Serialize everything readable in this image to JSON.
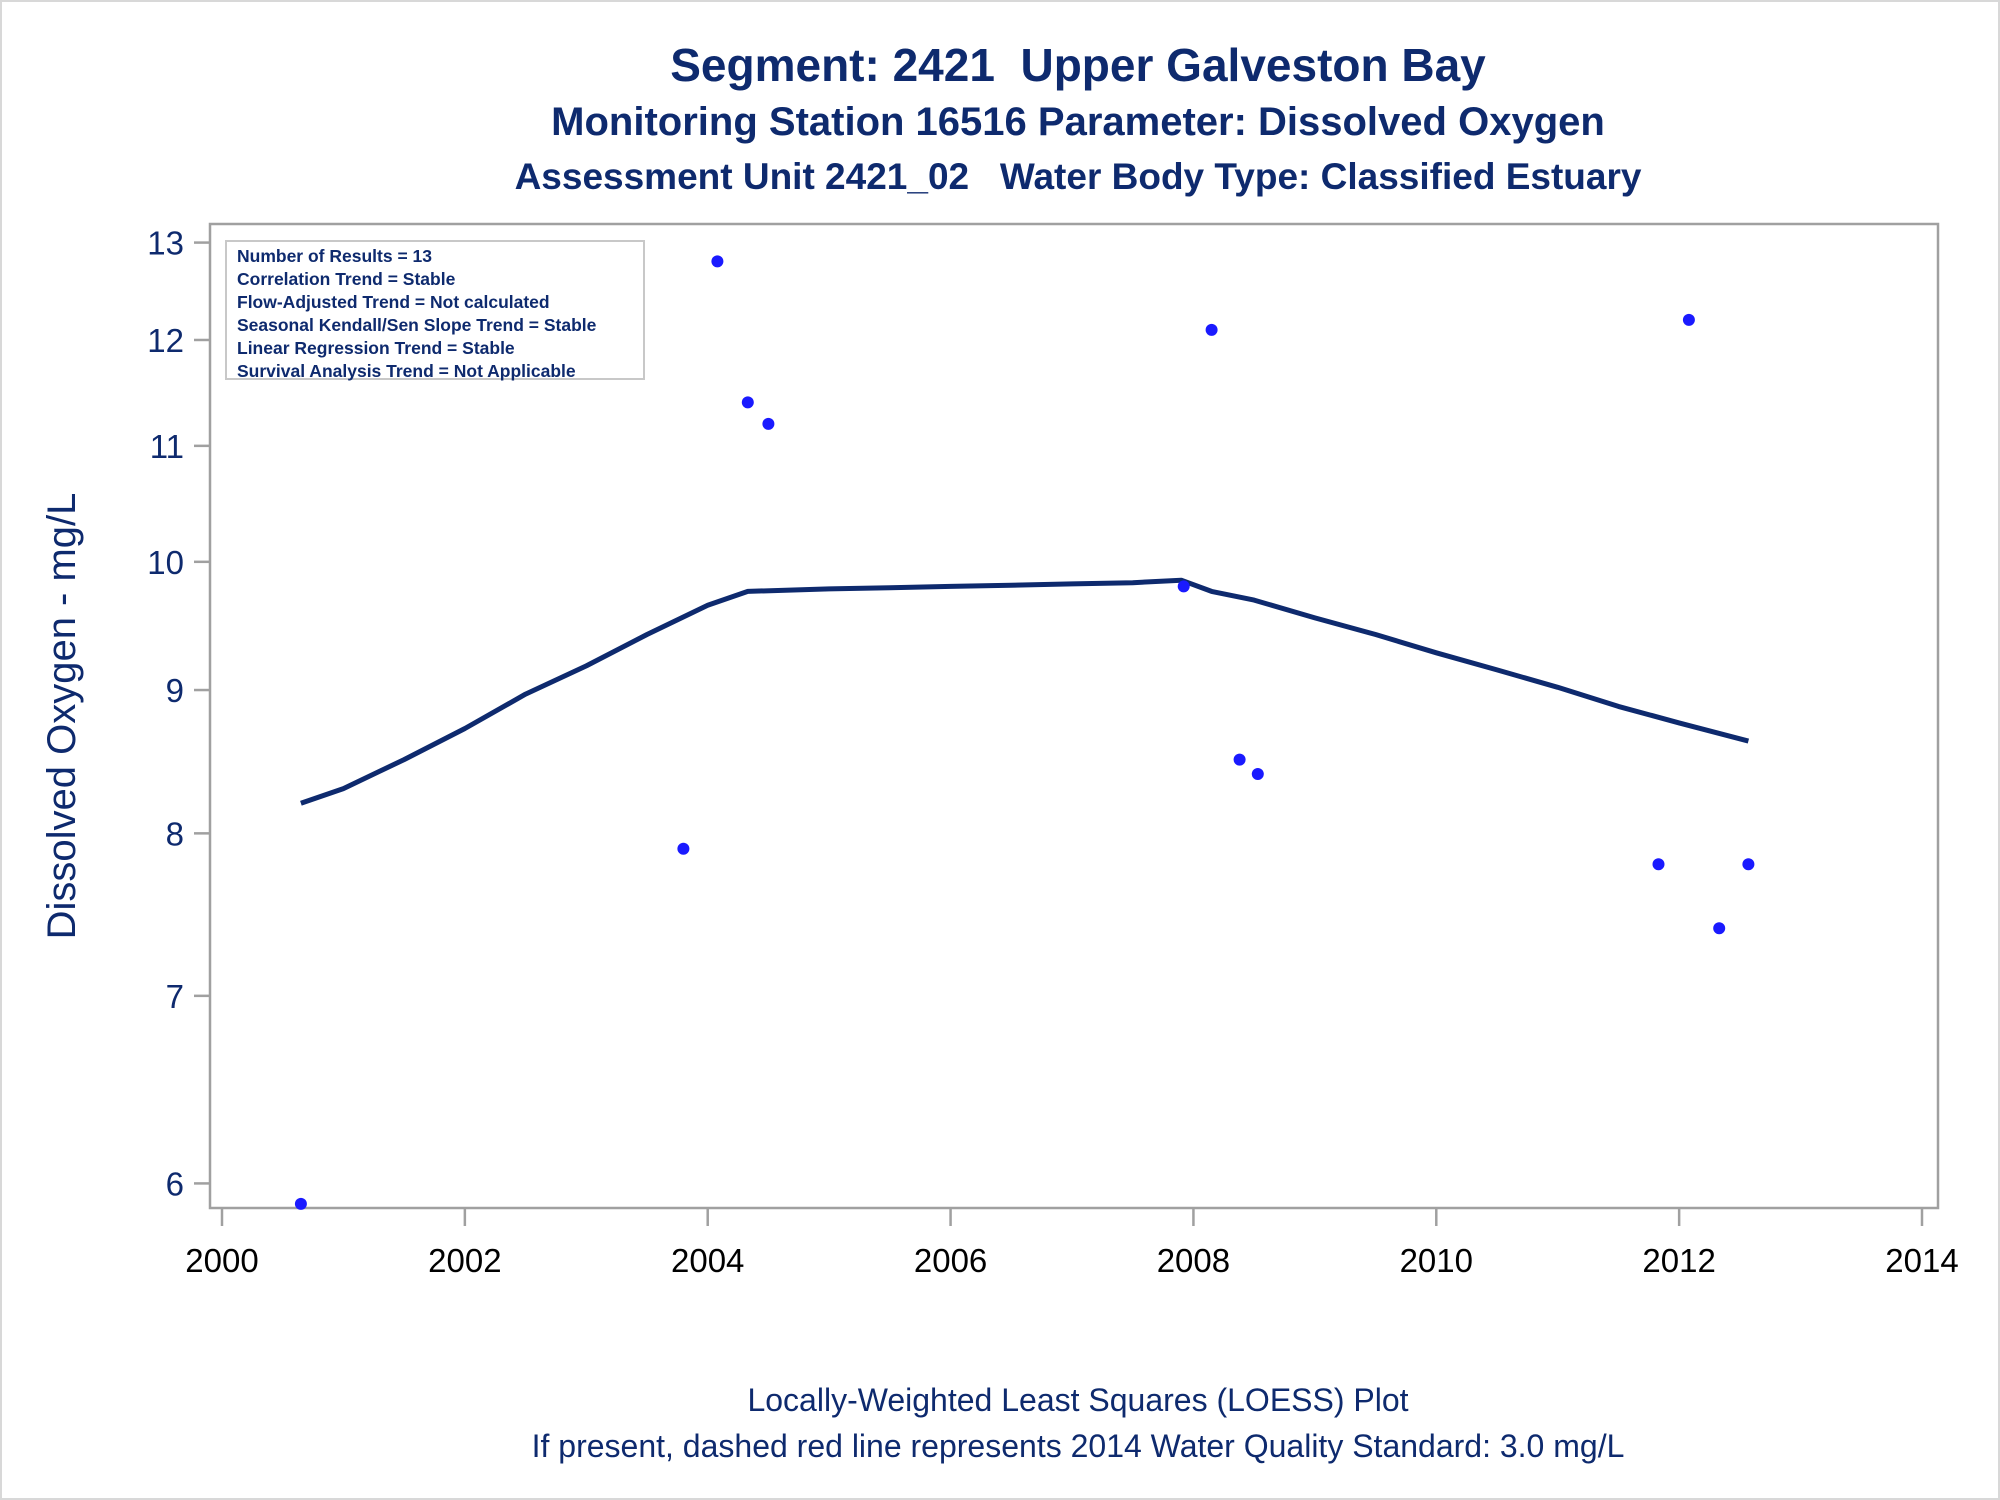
{
  "titles": {
    "line1": "Segment: 2421  Upper Galveston Bay",
    "line2": "Monitoring Station 16516 Parameter: Dissolved Oxygen",
    "line3": "Assessment Unit 2421_02   Water Body Type: Classified Estuary"
  },
  "footnotes": {
    "line1": "Locally-Weighted Least Squares (LOESS) Plot",
    "line2": "If present, dashed red line represents 2014 Water Quality Standard: 3.0 mg/L"
  },
  "stats": [
    "Number of Results = 13",
    "Correlation Trend = Stable",
    "Flow-Adjusted Trend = Not calculated",
    "Seasonal Kendall/Sen Slope Trend = Stable",
    "Linear Regression Trend = Stable",
    "Survival Analysis Trend = Not Applicable"
  ],
  "colors": {
    "text": "#0e2a6e",
    "points": "#1a1aff",
    "loess": "#0e2a6e",
    "axis": "#a0a0a0"
  },
  "chart_data": {
    "type": "scatter",
    "xlabel": "",
    "ylabel": "Dissolved Oxygen - mg/L",
    "x_scale": "linear",
    "y_scale": "log",
    "xlim": [
      2000,
      2014
    ],
    "ylim": [
      5.88,
      13.2
    ],
    "x_ticks": [
      2000,
      2002,
      2004,
      2006,
      2008,
      2010,
      2012,
      2014
    ],
    "y_ticks": [
      6,
      7,
      8,
      9,
      10,
      11,
      12,
      13
    ],
    "grid": false,
    "series": [
      {
        "type": "scatter",
        "points": [
          [
            2000.65,
            5.9
          ],
          [
            2003.8,
            7.9
          ],
          [
            2004.08,
            12.8
          ],
          [
            2004.33,
            11.4
          ],
          [
            2004.5,
            11.2
          ],
          [
            2007.92,
            9.8
          ],
          [
            2008.15,
            12.1
          ],
          [
            2008.38,
            8.5
          ],
          [
            2008.53,
            8.4
          ],
          [
            2011.83,
            7.8
          ],
          [
            2012.08,
            12.2
          ],
          [
            2012.33,
            7.4
          ],
          [
            2012.57,
            7.8
          ]
        ]
      },
      {
        "type": "line",
        "points": [
          [
            2000.65,
            8.2
          ],
          [
            2001.0,
            8.3
          ],
          [
            2001.5,
            8.5
          ],
          [
            2002.0,
            8.72
          ],
          [
            2002.5,
            8.97
          ],
          [
            2003.0,
            9.18
          ],
          [
            2003.5,
            9.42
          ],
          [
            2004.0,
            9.65
          ],
          [
            2004.33,
            9.76
          ],
          [
            2005.0,
            9.78
          ],
          [
            2005.5,
            9.79
          ],
          [
            2006.0,
            9.8
          ],
          [
            2006.5,
            9.81
          ],
          [
            2007.0,
            9.82
          ],
          [
            2007.5,
            9.83
          ],
          [
            2007.9,
            9.85
          ],
          [
            2008.15,
            9.76
          ],
          [
            2008.5,
            9.69
          ],
          [
            2009.0,
            9.55
          ],
          [
            2009.5,
            9.42
          ],
          [
            2010.0,
            9.28
          ],
          [
            2010.5,
            9.15
          ],
          [
            2011.0,
            9.02
          ],
          [
            2011.5,
            8.88
          ],
          [
            2012.0,
            8.76
          ],
          [
            2012.57,
            8.63
          ]
        ]
      }
    ]
  }
}
